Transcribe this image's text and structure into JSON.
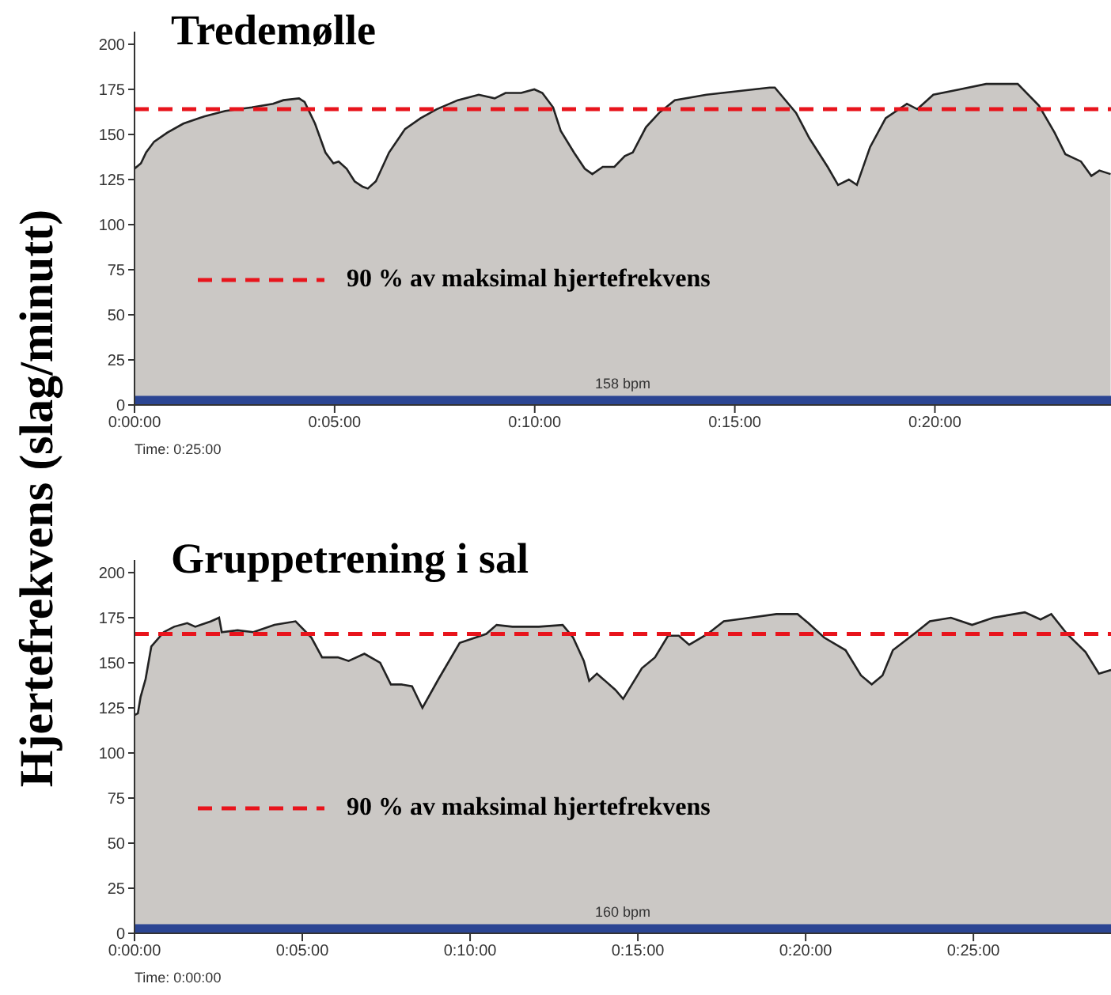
{
  "chart_data": [
    {
      "type": "area",
      "title": "Tredemølle",
      "ylabel": "Hjertefrekvens (slag/minutt)",
      "annotations": [
        "Time: 0:25:00"
      ],
      "series": [
        {
          "color": "#cbc8c5",
          "x": [
            0,
            0.16,
            0.29,
            0.49,
            0.82,
            1.22,
            1.74,
            2.27,
            2.93,
            3.46,
            3.72,
            4.11,
            4.25,
            4.51,
            4.77,
            4.97,
            5.1,
            5.3,
            5.5,
            5.7,
            5.83,
            6.03,
            6.36,
            6.76,
            7.15,
            7.55,
            8.08,
            8.6,
            9.0,
            9.27,
            9.66,
            9.99,
            10.19,
            10.46,
            10.65,
            10.98,
            11.25,
            11.44,
            11.7,
            11.99,
            12.25,
            12.45,
            12.78,
            13.11,
            13.5,
            14.29,
            15.08,
            15.87,
            16.0,
            16.53,
            16.86,
            17.32,
            17.58,
            17.85,
            18.05,
            18.38,
            18.77,
            19.3,
            19.56,
            19.96,
            20.62,
            21.28,
            22.07,
            22.6,
            22.99,
            23.26,
            23.65,
            23.91,
            24.11,
            24.39
          ],
          "values": [
            131,
            134,
            140,
            146,
            151,
            156,
            160,
            163,
            165,
            167,
            169,
            170,
            168,
            156,
            140,
            134,
            135,
            131,
            124,
            121,
            120,
            124,
            140,
            153,
            159,
            164,
            169,
            172,
            170,
            173,
            173,
            175,
            173,
            165,
            152,
            140,
            131,
            128,
            132,
            132,
            138,
            140,
            154,
            162,
            169,
            172,
            174,
            176,
            176,
            162,
            148,
            132,
            122,
            125,
            122,
            143,
            159,
            167,
            164,
            172,
            175,
            178,
            178,
            166,
            151,
            139,
            135,
            127,
            130,
            128
          ]
        }
      ],
      "xlim": [
        0,
        24.4
      ],
      "xticks": [
        {
          "value": 0,
          "label": "0:00:00"
        },
        {
          "value": 5,
          "label": "0:05:00"
        },
        {
          "value": 10,
          "label": "0:10:00"
        },
        {
          "value": 15,
          "label": "0:15:00"
        },
        {
          "value": 20,
          "label": "0:20:00"
        }
      ],
      "ylim": [
        0,
        207
      ],
      "yticks": [
        0,
        25,
        50,
        75,
        100,
        125,
        150,
        175,
        200
      ],
      "ref_lines": [
        {
          "axis": "y",
          "value": 164,
          "label": "90 % av maksimal hjertefrekvens",
          "color": "#e8141c",
          "line_style": "dashed"
        }
      ],
      "bands": [
        {
          "axis": "y",
          "from": 0,
          "to": 5,
          "label": "158 bpm",
          "color": "#2b4593"
        }
      ]
    },
    {
      "type": "area",
      "title": "Gruppetrening i sal",
      "annotations": [
        "Time: 0:00:00"
      ],
      "series": [
        {
          "color": "#cbc8c5",
          "x": [
            0,
            0.1,
            0.18,
            0.33,
            0.5,
            0.87,
            1.18,
            1.57,
            1.81,
            2.28,
            2.52,
            2.6,
            3.07,
            3.54,
            4.17,
            4.8,
            5.27,
            5.59,
            6.06,
            6.38,
            6.85,
            7.32,
            7.64,
            7.95,
            8.27,
            8.58,
            9.06,
            9.69,
            10.48,
            10.79,
            11.26,
            12.05,
            12.76,
            13.07,
            13.39,
            13.55,
            13.78,
            14.33,
            14.56,
            15.12,
            15.51,
            15.9,
            16.22,
            16.53,
            17.08,
            17.56,
            18.34,
            19.13,
            19.76,
            20.08,
            20.55,
            21.19,
            21.65,
            21.97,
            22.29,
            22.6,
            23.23,
            23.7,
            24.33,
            24.96,
            25.59,
            26.53,
            27.0,
            27.32,
            27.79,
            28.34,
            28.74,
            29.1
          ],
          "values": [
            121,
            122,
            131,
            141,
            159,
            167,
            170,
            172,
            170,
            173,
            175,
            167,
            168,
            167,
            171,
            173,
            164,
            153,
            153,
            151,
            155,
            150,
            138,
            138,
            137,
            125,
            141,
            161,
            166,
            171,
            170,
            170,
            171,
            164,
            151,
            140,
            144,
            135,
            130,
            147,
            153,
            165,
            165,
            160,
            166,
            173,
            175,
            177,
            177,
            172,
            164,
            157,
            143,
            138,
            143,
            157,
            166,
            173,
            175,
            171,
            175,
            178,
            174,
            177,
            166,
            156,
            144,
            146
          ]
        }
      ],
      "xlim": [
        0,
        29.1
      ],
      "xticks": [
        {
          "value": 0,
          "label": "0:00:00"
        },
        {
          "value": 5,
          "label": "0:05:00"
        },
        {
          "value": 10,
          "label": "0:10:00"
        },
        {
          "value": 15,
          "label": "0:15:00"
        },
        {
          "value": 20,
          "label": "0:20:00"
        },
        {
          "value": 25,
          "label": "0:25:00"
        }
      ],
      "ylim": [
        0,
        207
      ],
      "yticks": [
        0,
        25,
        50,
        75,
        100,
        125,
        150,
        175,
        200
      ],
      "ref_lines": [
        {
          "axis": "y",
          "value": 166,
          "label": "90 % av maksimal hjertefrekvens",
          "color": "#e8141c",
          "line_style": "dashed"
        }
      ],
      "bands": [
        {
          "axis": "y",
          "from": 0,
          "to": 5,
          "label": "160 bpm",
          "color": "#2b4593"
        }
      ]
    }
  ]
}
